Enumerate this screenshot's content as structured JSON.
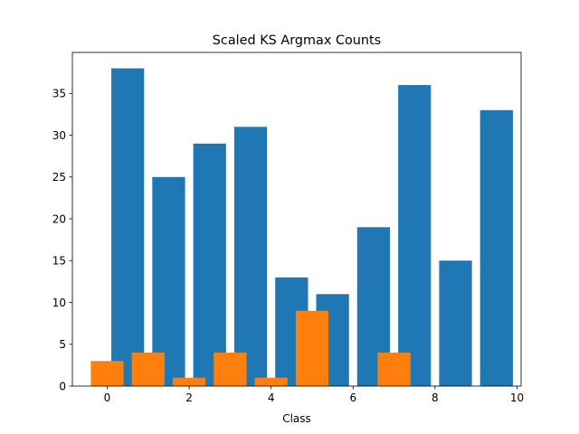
{
  "chart_data": {
    "type": "bar",
    "title": "Scaled KS Argmax Counts",
    "xlabel": "Class",
    "ylabel": "",
    "xlim": [
      -0.85,
      10.1
    ],
    "ylim": [
      0,
      39.9
    ],
    "x_ticks": [
      0,
      2,
      4,
      6,
      8,
      10
    ],
    "y_ticks": [
      0,
      5,
      10,
      15,
      20,
      25,
      30,
      35
    ],
    "grid": false,
    "legend": "none",
    "series": [
      {
        "color": "#1f77b4",
        "bar_width": 0.8,
        "points": [
          {
            "x": 0.5,
            "y": 38
          },
          {
            "x": 1.5,
            "y": 25
          },
          {
            "x": 2.5,
            "y": 29
          },
          {
            "x": 3.5,
            "y": 31
          },
          {
            "x": 4.5,
            "y": 13
          },
          {
            "x": 5.5,
            "y": 11
          },
          {
            "x": 6.5,
            "y": 19
          },
          {
            "x": 7.5,
            "y": 36
          },
          {
            "x": 8.5,
            "y": 15
          },
          {
            "x": 9.5,
            "y": 33
          }
        ]
      },
      {
        "color": "#ff7f0e",
        "bar_width": 0.8,
        "points": [
          {
            "x": 0,
            "y": 3
          },
          {
            "x": 1,
            "y": 4
          },
          {
            "x": 2,
            "y": 1
          },
          {
            "x": 3,
            "y": 4
          },
          {
            "x": 4,
            "y": 1
          },
          {
            "x": 5,
            "y": 9
          },
          {
            "x": 7,
            "y": 4
          }
        ]
      }
    ]
  }
}
